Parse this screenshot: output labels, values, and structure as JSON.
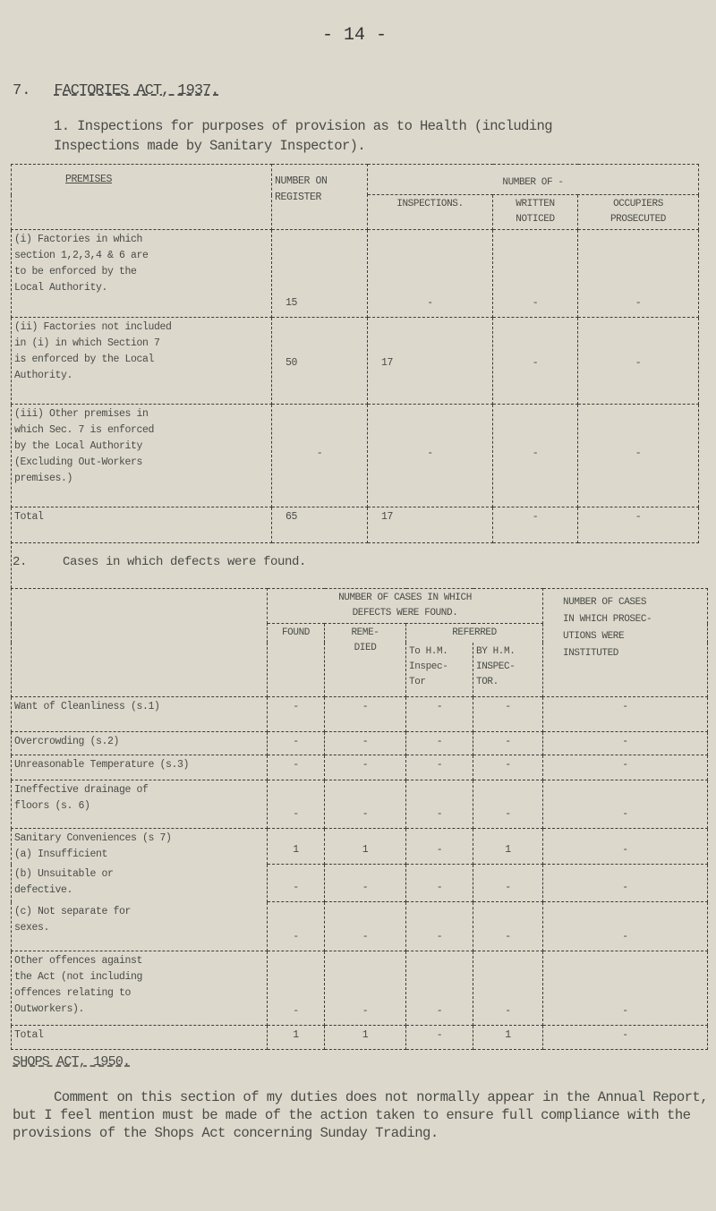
{
  "page_number": "- 14 -",
  "section": {
    "number": "7.",
    "title": "FACTORIES ACT, 1937."
  },
  "intro": "1. Inspections for purposes of provision as to Health (including\nInspections made by Sanitary Inspector).",
  "table1": {
    "headers": {
      "premises": "PREMISES",
      "number_on_register": "NUMBER ON\nREGISTER",
      "number_of": "NUMBER   OF -",
      "inspections": "INSPECTIONS.",
      "written_notices": "WRITTEN\nNOTICED",
      "occupiers_prosecuted": "OCCUPIERS\nPROSECUTED"
    },
    "rows": [
      {
        "premises": "(i)  Factories in which\nsection 1,2,3,4 & 6 are\nto be enforced by the\nLocal Authority.",
        "register": "15",
        "inspections": "-",
        "notices": "-",
        "prosecuted": "-"
      },
      {
        "premises": "(ii)  Factories not included\nin (i) in which Section 7\nis enforced by the Local\nAuthority.",
        "register": "50",
        "inspections": "17",
        "notices": "-",
        "prosecuted": "-"
      },
      {
        "premises": "(iii) Other premises in\nwhich Sec. 7 is enforced\nby the Local Authority\n(Excluding Out-Workers\npremises.)",
        "register": "-",
        "inspections": "-",
        "notices": "-",
        "prosecuted": "-"
      },
      {
        "premises": "Total",
        "register": "65",
        "inspections": "17",
        "notices": "-",
        "prosecuted": "-"
      }
    ]
  },
  "section2": {
    "number": "2.",
    "title": "Cases in which defects were found."
  },
  "table2": {
    "headers": {
      "defects_found": "NUMBER OF CASES IN WHICH\nDEFECTS WERE FOUND.",
      "prosecutions": "NUMBER OF CASES\nIN WHICH PROSEC-\nUTIONS WERE\nINSTITUTED",
      "found": "FOUND",
      "remedied": "REME-\nDIED",
      "referred": "REFERRED",
      "to_inspector": "To H.M.\nInspec-\nTor",
      "by_inspector": "BY H.M.\nINSPEC-\nTOR."
    },
    "rows": [
      {
        "label": "Want of Cleanliness (s.1)",
        "found": "-",
        "remedied": "-",
        "to": "-",
        "by": "-",
        "prosecutions": "-"
      },
      {
        "label": "Overcrowding (s.2)",
        "found": "-",
        "remedied": "-",
        "to": "-",
        "by": "-",
        "prosecutions": "-"
      },
      {
        "label": "Unreasonable Temperature (s.3)",
        "found": "-",
        "remedied": "-",
        "to": "-",
        "by": "-",
        "prosecutions": "-"
      },
      {
        "label": "Ineffective drainage of\nfloors (s. 6)",
        "found": "-",
        "remedied": "-",
        "to": "-",
        "by": "-",
        "prosecutions": "-"
      },
      {
        "label": "Sanitary Conveniences (s 7)\n (a)  Insufficient",
        "found": "1",
        "remedied": "1",
        "to": "-",
        "by": "1",
        "prosecutions": "-"
      },
      {
        "label": " (b) Unsuitable or\n     defective.",
        "found": "-",
        "remedied": "-",
        "to": "-",
        "by": "-",
        "prosecutions": "-"
      },
      {
        "label": " (c)  Not separate for\n      sexes.",
        "found": "-",
        "remedied": "-",
        "to": "-",
        "by": "-",
        "prosecutions": "-"
      },
      {
        "label": "Other offences against\nthe Act (not including\noffences relating to\nOutworkers).",
        "found": "-",
        "remedied": "-",
        "to": "-",
        "by": "-",
        "prosecutions": "-"
      },
      {
        "label": "Total",
        "found": "1",
        "remedied": "1",
        "to": "-",
        "by": "1",
        "prosecutions": "-"
      }
    ]
  },
  "shops": {
    "title": "SHOPS ACT, 1950.",
    "paragraph": "Comment on this section of my duties does not normally appear in the Annual Report, but I feel mention must be made of the action taken to ensure full compliance with the provisions of the Shops Act concerning Sunday Trading."
  }
}
